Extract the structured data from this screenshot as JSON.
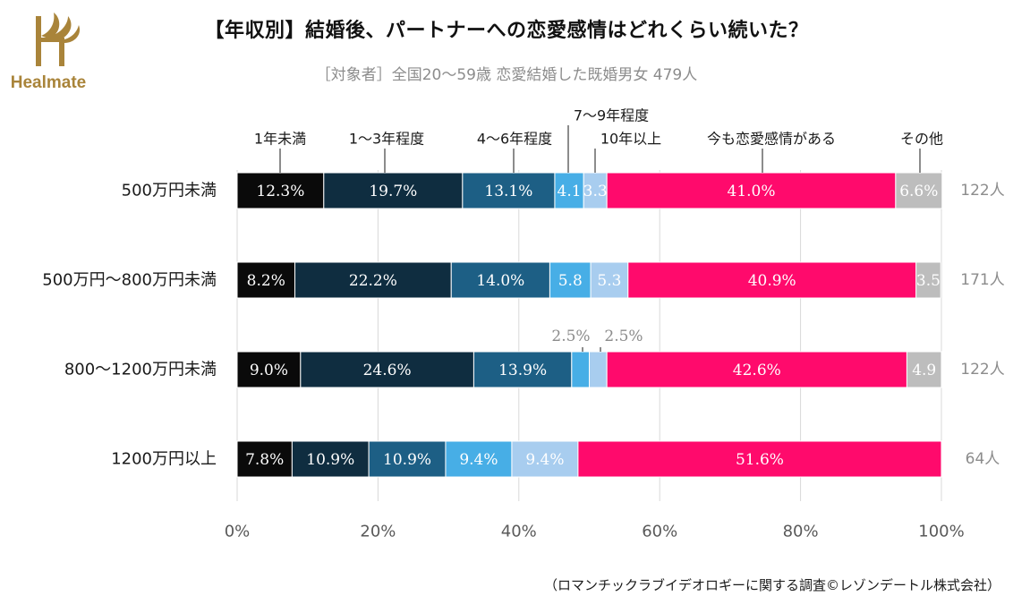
{
  "brand": {
    "name": "Healmate",
    "mark_color": "#a9843a"
  },
  "title": "【年収別】結婚後、パートナーへの恋愛感情はどれくらい続いた？",
  "subtitle": "［対象者］全国20～59歳 恋愛結婚した既婚男女 479人",
  "source": "（ロマンチックラブイデオロギーに関する調査©レゾンデートル株式会社）",
  "chart_data": {
    "type": "bar",
    "orientation": "horizontal",
    "stacked": true,
    "categories": [
      "500万円未満",
      "500万円～800万円未満",
      "800～1200万円未満",
      "1200万円以上"
    ],
    "respondents": [
      "122人",
      "171人",
      "122人",
      "64人"
    ],
    "series": [
      {
        "name": "1年未満",
        "color": "#0a0a0a",
        "text_color": "#ffffff",
        "values": [
          12.3,
          8.2,
          9.0,
          7.8
        ],
        "labels": [
          "12.3%",
          "8.2%",
          "9.0%",
          "7.8%"
        ]
      },
      {
        "name": "1～3年程度",
        "color": "#0f2d40",
        "text_color": "#ffffff",
        "values": [
          19.7,
          22.2,
          24.6,
          10.9
        ],
        "labels": [
          "19.7%",
          "22.2%",
          "24.6%",
          "10.9%"
        ]
      },
      {
        "name": "4～6年程度",
        "color": "#1d5f85",
        "text_color": "#ffffff",
        "values": [
          13.1,
          14.0,
          13.9,
          10.9
        ],
        "labels": [
          "13.1%",
          "14.0%",
          "13.9%",
          "10.9%"
        ]
      },
      {
        "name": "7～9年程度",
        "color": "#47aee6",
        "text_color": "#ffffff",
        "values": [
          4.1,
          5.8,
          2.5,
          9.4
        ],
        "labels": [
          "4.1",
          "5.8",
          "",
          "9.4%"
        ]
      },
      {
        "name": "10年以上",
        "color": "#a8cdef",
        "text_color": "#ffffff",
        "values": [
          3.3,
          5.3,
          2.5,
          9.4
        ],
        "labels": [
          "3.3",
          "5.3",
          "",
          "9.4%"
        ]
      },
      {
        "name": "今も恋愛感情がある",
        "color": "#ff0a6c",
        "text_color": "#ffffff",
        "values": [
          41.0,
          40.9,
          42.6,
          51.6
        ],
        "labels": [
          "41.0%",
          "40.9%",
          "42.6%",
          "51.6%"
        ]
      },
      {
        "name": "その他",
        "color": "#bdbdbd",
        "text_color": "#ffffff",
        "values": [
          6.6,
          3.5,
          4.9,
          0
        ],
        "labels": [
          "6.6%",
          "3.5",
          "4.9",
          ""
        ]
      }
    ],
    "callouts": [
      {
        "category_index": 2,
        "series_index": 3,
        "text": "2.5%"
      },
      {
        "category_index": 2,
        "series_index": 4,
        "text": "2.5%"
      }
    ],
    "xlim": [
      0,
      100
    ],
    "xticks": [
      0,
      20,
      40,
      60,
      80,
      100
    ],
    "xtick_labels": [
      "0%",
      "20%",
      "40%",
      "60%",
      "80%",
      "100%"
    ],
    "grid": true,
    "legend": "above bars with leader lines"
  }
}
